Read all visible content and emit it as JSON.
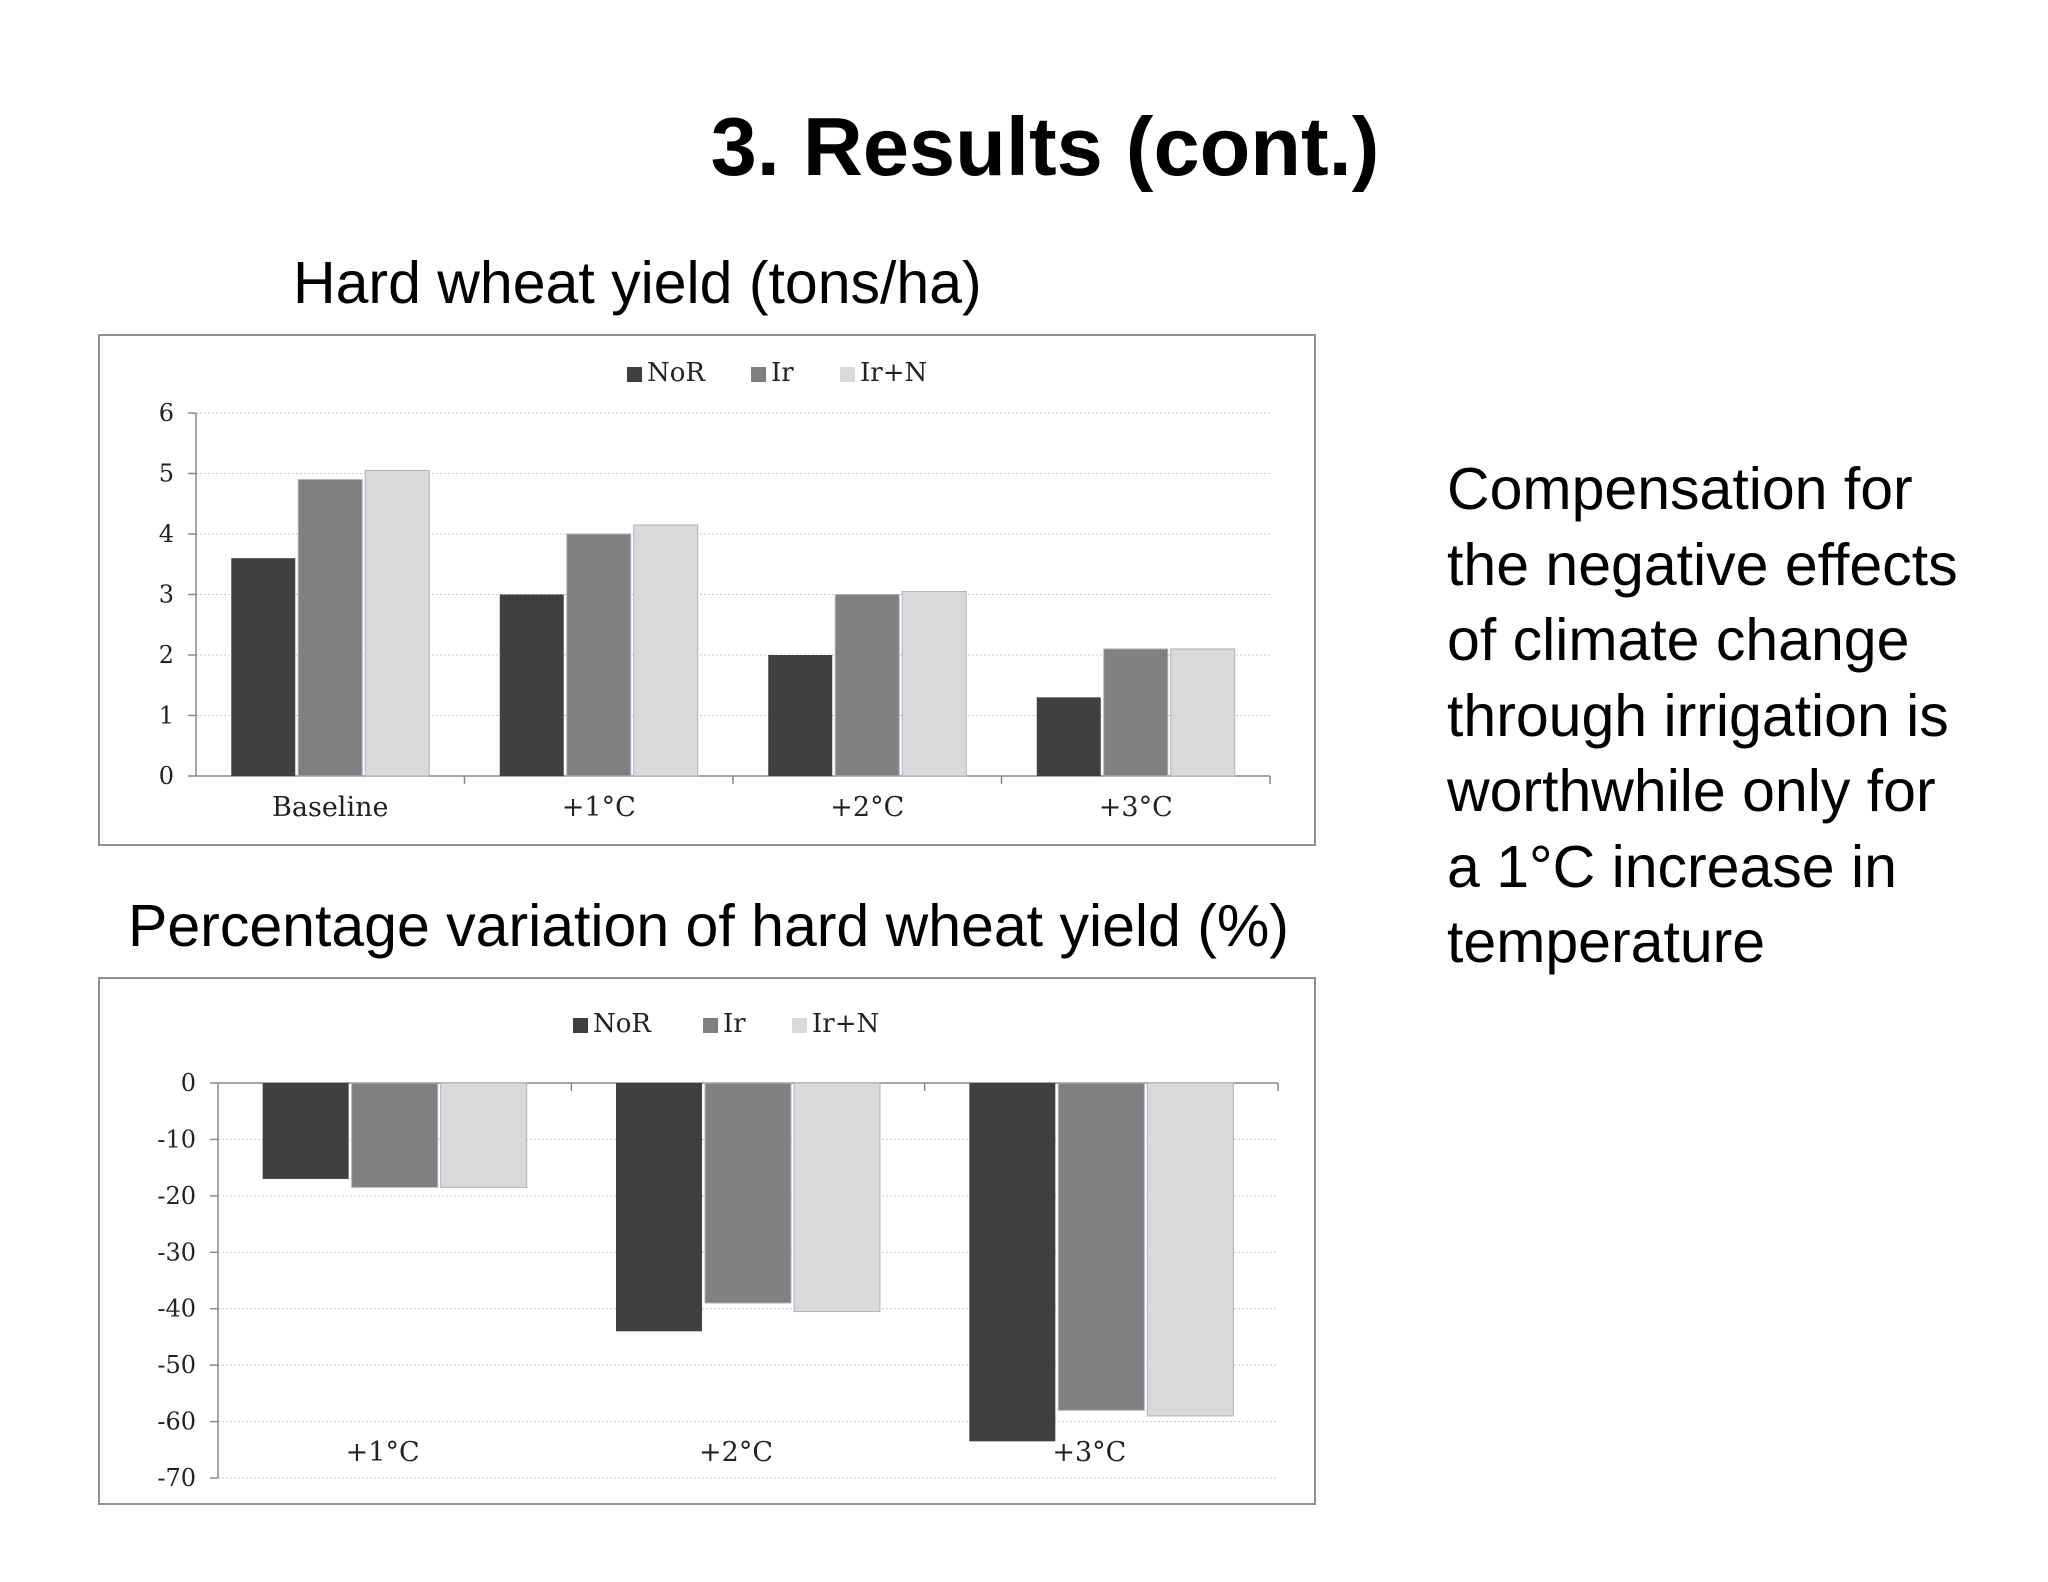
{
  "slide": {
    "title": "3. Results (cont.)",
    "side_text": "Compensation for the negative effects of climate change through irrigation is worthwhile only for a 1°C increase in temperature"
  },
  "colors": {
    "NoR": "#404040",
    "Ir": "#808080",
    "Ir+N": "#d9d9d9"
  },
  "chart_data": [
    {
      "type": "bar",
      "title": "Hard wheat yield (tons/ha)",
      "categories": [
        "Baseline",
        "+1°C",
        "+2°C",
        "+3°C"
      ],
      "series": [
        {
          "name": "NoR",
          "values": [
            3.6,
            3.0,
            2.0,
            1.3
          ]
        },
        {
          "name": "Ir",
          "values": [
            4.9,
            4.0,
            3.0,
            2.1
          ]
        },
        {
          "name": "Ir+N",
          "values": [
            5.05,
            4.15,
            3.05,
            2.1
          ]
        }
      ],
      "yticks": [
        "0",
        "1",
        "2",
        "3",
        "4",
        "5",
        "6"
      ],
      "ylim": [
        0,
        6
      ],
      "grid": true,
      "legend": "top-center"
    },
    {
      "type": "bar",
      "title": "Percentage variation of hard wheat yield (%)",
      "categories": [
        "+1°C",
        "+2°C",
        "+3°C"
      ],
      "series": [
        {
          "name": "NoR",
          "values": [
            -17,
            -44,
            -63.5
          ]
        },
        {
          "name": "Ir",
          "values": [
            -18.5,
            -39,
            -58
          ]
        },
        {
          "name": "Ir+N",
          "values": [
            -18.5,
            -40.5,
            -59
          ]
        }
      ],
      "yticks": [
        "0",
        "-10",
        "-20",
        "-30",
        "-40",
        "-50",
        "-60",
        "-70"
      ],
      "ylim": [
        -70,
        0
      ],
      "grid": true,
      "legend": "top-center"
    }
  ]
}
